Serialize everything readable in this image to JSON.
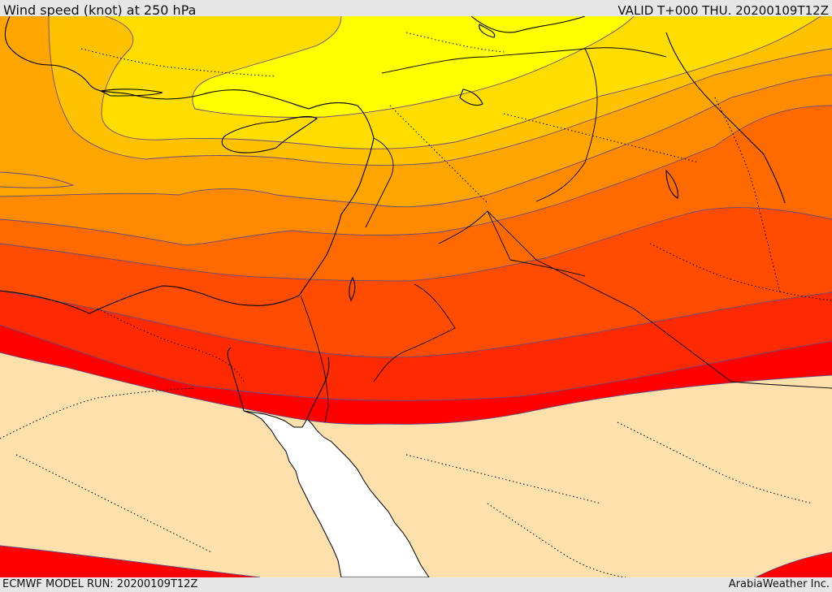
{
  "header": {
    "title": "Wind speed (knot) at 250 hPa",
    "valid": "VALID T+000 THU. 20200109T12Z"
  },
  "footer": {
    "model_run": "ECMWF MODEL RUN: 20200109T12Z",
    "credit": "ArabiaWeather Inc."
  },
  "colors": {
    "calm": "#fde0ac",
    "band_1": "#ff0000",
    "band_2": "#ff2a00",
    "band_3": "#ff4c00",
    "band_4": "#ff6a00",
    "band_5": "#ff8a00",
    "band_6": "#ffa500",
    "band_7": "#ffc200",
    "band_8": "#ffdd00",
    "band_max": "#ffff00",
    "sea": "#ffffff",
    "coastline": "#000000",
    "contour": "#6b4a7a"
  }
}
